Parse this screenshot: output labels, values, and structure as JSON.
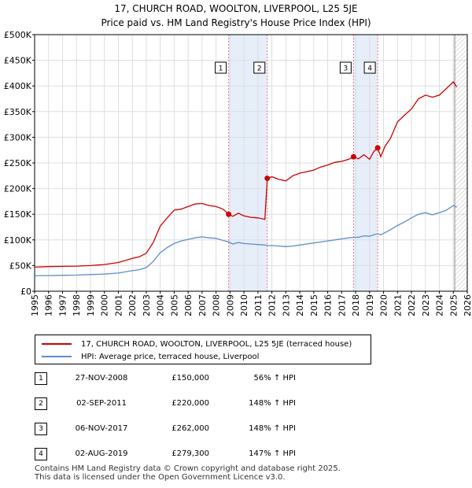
{
  "header": {
    "title": "17, CHURCH ROAD, WOOLTON, LIVERPOOL, L25 5JE",
    "subtitle": "Price paid vs. HM Land Registry's House Price Index (HPI)"
  },
  "colors": {
    "property": "#cc0000",
    "hpi": "#5b8fc7",
    "shade": "#e6eefa",
    "grid": "#dddddd",
    "marker": "#cc0000",
    "vline": "#e08080"
  },
  "chart_data": {
    "type": "line",
    "title": "17, CHURCH ROAD, WOOLTON, LIVERPOOL, L25 5JE",
    "subtitle": "Price paid vs. HM Land Registry's House Price Index (HPI)",
    "xlim": [
      1995,
      2026
    ],
    "ylim": [
      0,
      500000
    ],
    "y_ticks": [
      0,
      50000,
      100000,
      150000,
      200000,
      250000,
      300000,
      350000,
      400000,
      450000,
      500000
    ],
    "y_tick_labels": [
      "£0",
      "£50K",
      "£100K",
      "£150K",
      "£200K",
      "£250K",
      "£300K",
      "£350K",
      "£400K",
      "£450K",
      "£500K"
    ],
    "x_ticks": [
      1995,
      1996,
      1997,
      1998,
      1999,
      2000,
      2001,
      2002,
      2003,
      2004,
      2005,
      2006,
      2007,
      2008,
      2009,
      2010,
      2011,
      2012,
      2013,
      2014,
      2015,
      2016,
      2017,
      2018,
      2019,
      2020,
      2021,
      2022,
      2023,
      2024,
      2025,
      2026
    ],
    "x_tick_labels": [
      "1995",
      "1996",
      "1997",
      "1998",
      "1999",
      "2000",
      "2001",
      "2002",
      "2003",
      "2004",
      "2005",
      "2006",
      "2007",
      "2008",
      "2009",
      "2010",
      "2011",
      "2012",
      "2013",
      "2014",
      "2015",
      "2016",
      "2017",
      "2018",
      "2019",
      "2020",
      "2021",
      "2022",
      "2023",
      "2024",
      "2025",
      "2026"
    ],
    "grid": true,
    "forecast_start": 2025.1,
    "shaded_ranges": [
      [
        2008.9,
        2011.67
      ],
      [
        2017.85,
        2019.58
      ]
    ],
    "series": [
      {
        "name": "17, CHURCH ROAD, WOOLTON, LIVERPOOL, L25 5JE (terraced house)",
        "x": [
          1995.0,
          1996.0,
          1997.0,
          1998.0,
          1999.0,
          2000.0,
          2001.0,
          2002.0,
          2002.5,
          2003.0,
          2003.5,
          2004.0,
          2004.5,
          2005.0,
          2005.5,
          2006.0,
          2006.5,
          2007.0,
          2007.5,
          2008.0,
          2008.5,
          2008.9,
          2009.2,
          2009.6,
          2010.0,
          2010.5,
          2011.0,
          2011.5,
          2011.67,
          2012.0,
          2012.5,
          2013.0,
          2013.5,
          2014.0,
          2014.5,
          2015.0,
          2015.5,
          2016.0,
          2016.5,
          2017.0,
          2017.5,
          2017.85,
          2018.2,
          2018.6,
          2019.0,
          2019.3,
          2019.58,
          2019.8,
          2020.1,
          2020.5,
          2021.0,
          2021.5,
          2022.0,
          2022.5,
          2023.0,
          2023.5,
          2024.0,
          2024.5,
          2025.0,
          2025.25
        ],
        "values": [
          47000,
          48000,
          48500,
          49000,
          50000,
          52000,
          56000,
          64000,
          67000,
          74000,
          95000,
          127000,
          143000,
          158000,
          160000,
          165000,
          170000,
          171000,
          167000,
          165000,
          160000,
          150000,
          146000,
          152000,
          147000,
          144000,
          143000,
          140000,
          220000,
          223000,
          218000,
          215000,
          225000,
          230000,
          233000,
          236000,
          242000,
          246000,
          251000,
          253000,
          257000,
          262000,
          258000,
          266000,
          257000,
          272000,
          279300,
          262000,
          282000,
          298000,
          330000,
          343000,
          355000,
          375000,
          382000,
          378000,
          382000,
          395000,
          408000,
          398000
        ]
      },
      {
        "name": "HPI: Average price, terraced house, Liverpool",
        "x": [
          1995.0,
          1996.0,
          1997.0,
          1998.0,
          1999.0,
          2000.0,
          2001.0,
          2002.0,
          2002.5,
          2003.0,
          2003.5,
          2004.0,
          2004.5,
          2005.0,
          2005.5,
          2006.0,
          2006.5,
          2007.0,
          2007.5,
          2008.0,
          2008.5,
          2008.9,
          2009.2,
          2009.6,
          2010.0,
          2010.5,
          2011.0,
          2011.5,
          2011.67,
          2012.0,
          2012.5,
          2013.0,
          2013.5,
          2014.0,
          2014.5,
          2015.0,
          2015.5,
          2016.0,
          2016.5,
          2017.0,
          2017.5,
          2017.85,
          2018.2,
          2018.6,
          2019.0,
          2019.3,
          2019.58,
          2019.8,
          2020.1,
          2020.5,
          2021.0,
          2021.5,
          2022.0,
          2022.5,
          2023.0,
          2023.5,
          2024.0,
          2024.5,
          2025.0,
          2025.25
        ],
        "values": [
          30000,
          30500,
          31000,
          31500,
          32500,
          33500,
          35500,
          40000,
          42000,
          46000,
          58000,
          75000,
          85000,
          93000,
          98000,
          101000,
          104000,
          106000,
          104000,
          103000,
          99000,
          96000,
          92000,
          95000,
          93000,
          92000,
          91000,
          90000,
          89000,
          89000,
          88000,
          87000,
          88000,
          90000,
          92000,
          94000,
          96000,
          98000,
          100000,
          102000,
          104000,
          105000,
          105000,
          108000,
          107000,
          110000,
          112000,
          110000,
          114000,
          120000,
          128000,
          135000,
          143000,
          150000,
          153000,
          149000,
          153000,
          158000,
          167000,
          164000
        ]
      }
    ],
    "transactions": [
      {
        "num": "1",
        "date": "27-NOV-2008",
        "price": "£150,000",
        "hpi": "56% ↑ HPI",
        "x": 2008.9,
        "value": 150000
      },
      {
        "num": "2",
        "date": "02-SEP-2011",
        "price": "£220,000",
        "hpi": "148% ↑ HPI",
        "x": 2011.67,
        "value": 220000
      },
      {
        "num": "3",
        "date": "06-NOV-2017",
        "price": "£262,000",
        "hpi": "148% ↑ HPI",
        "x": 2017.85,
        "value": 262000
      },
      {
        "num": "4",
        "date": "02-AUG-2019",
        "price": "£279,300",
        "hpi": "147% ↑ HPI",
        "x": 2019.58,
        "value": 279300
      }
    ]
  },
  "legend": {
    "property_label": "17, CHURCH ROAD, WOOLTON, LIVERPOOL, L25 5JE (terraced house)",
    "hpi_label": "HPI: Average price, terraced house, Liverpool"
  },
  "footer": {
    "line1": "Contains HM Land Registry data © Crown copyright and database right 2025.",
    "line2": "This data is licensed under the Open Government Licence v3.0."
  }
}
